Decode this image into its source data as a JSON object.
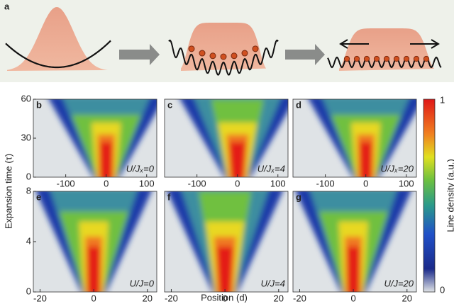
{
  "figure": {
    "panel_a_label": "a",
    "y_axis_label": "Expansion time (τ)",
    "x_axis_label": "Position (d)",
    "colorbar": {
      "label": "Line density (a.u.)",
      "max_label": "1",
      "min_label": "0"
    },
    "rows": [
      {
        "xlim": [
          -180,
          125
        ],
        "xticks": [
          -100,
          0,
          100
        ],
        "ylim": [
          0,
          60
        ],
        "yticks": [
          0,
          30,
          60
        ],
        "panels": [
          {
            "label": "b",
            "annotation": "U/Jₓ=0"
          },
          {
            "label": "c",
            "annotation": "U/Jₓ=4"
          },
          {
            "label": "d",
            "annotation": "U/Jₓ=20"
          }
        ]
      },
      {
        "xlim": [
          -22.5,
          23.5
        ],
        "xticks": [
          -20,
          0,
          20
        ],
        "ylim": [
          0,
          8
        ],
        "yticks": [
          0,
          4,
          8
        ],
        "panels": [
          {
            "label": "e",
            "annotation": "U/J=0"
          },
          {
            "label": "f",
            "annotation": "U/J=4"
          },
          {
            "label": "g",
            "annotation": "U/J=20"
          }
        ]
      }
    ]
  }
}
